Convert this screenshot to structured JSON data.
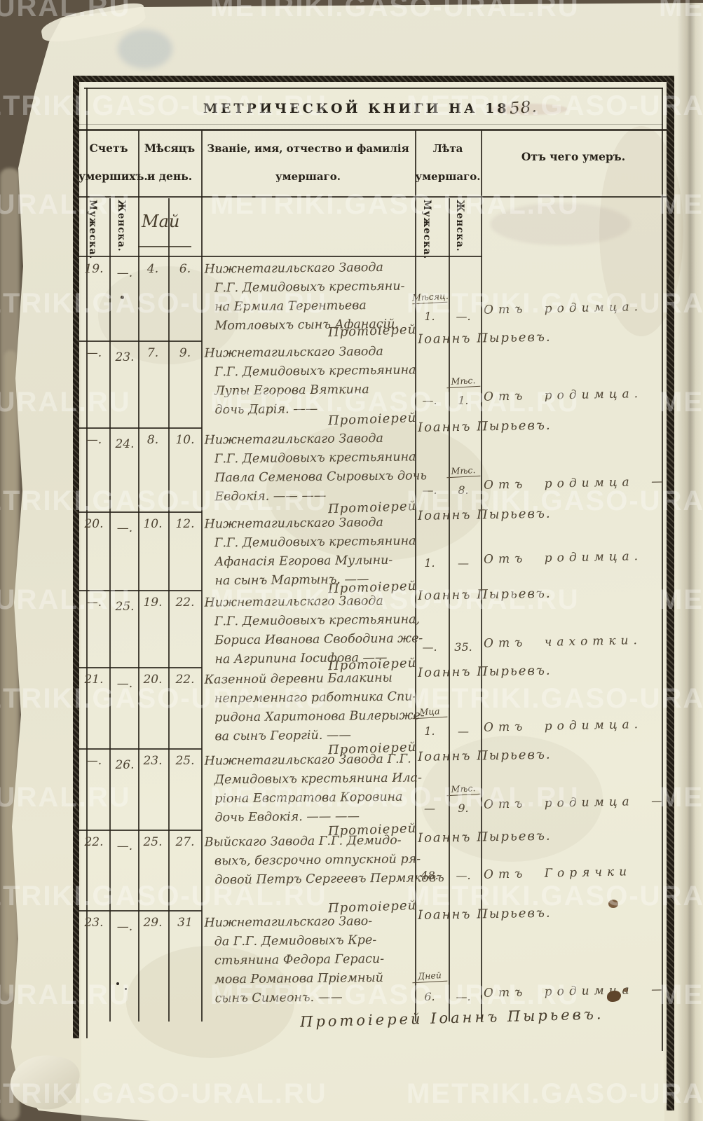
{
  "colors": {
    "background": "#5e5344",
    "paper": "#e8e5d2",
    "print_ink": "#27221a",
    "handwriting_ink": "#4e4433",
    "watermark_white": "rgba(255,255,255,0.32)"
  },
  "watermark": {
    "text": "METRIKI.GASO-URAL.RU"
  },
  "title": {
    "printed": "МЕТРИЧЕСКОЙ КНИГИ НА 18",
    "handwritten": "58."
  },
  "headers": {
    "count1": "Счетъ",
    "count2": "умершихъ.",
    "date1": "Мѣсяцъ",
    "date2": "и день.",
    "name1": "Званіе, имя, отчество и фамилія",
    "name2": "умершаго.",
    "age1": "Лѣта",
    "age2": "умершаго.",
    "cause": "Отъ чего умеръ.",
    "sub_male": "Мужеска.",
    "sub_female": "Женска."
  },
  "month_label": "Май",
  "entries": [
    {
      "no_male": "19.",
      "no_female": "—.",
      "day_death": "4.",
      "day_burial": "6.",
      "description_lines": [
        "Нижнетагильскаго Завода",
        "Г.Г. Демидовыхъ крестьяни-",
        "на Ермила Терентьева",
        "Мотловыхъ сынъ Афанасій."
      ],
      "age_male_label": "Мѣсяц.",
      "age_male": "1.",
      "age_female_label": "",
      "age_female": "—.",
      "cause": "Отъ родимца.",
      "priest_prefix": "Протоіерей",
      "priest_name": "Іоаннъ Пырьевъ."
    },
    {
      "no_male": "—.",
      "no_female": "23.",
      "day_death": "7.",
      "day_burial": "9.",
      "description_lines": [
        "Нижнетагильскаго Завода",
        "Г.Г. Демидовыхъ крестьянина",
        "Лупы Егорова Вяткина",
        "дочь Дарія.  ——"
      ],
      "age_male_label": "",
      "age_male": "—.",
      "age_female_label": "Мѣс.",
      "age_female": "1.",
      "cause": "Отъ родимца.",
      "priest_prefix": "Протоіерей",
      "priest_name": "Іоаннъ Пырьевъ."
    },
    {
      "no_male": "—.",
      "no_female": "24.",
      "day_death": "8.",
      "day_burial": "10.",
      "description_lines": [
        "Нижнетагильскаго Завода",
        "Г.Г. Демидовыхъ крестьянина",
        "Павла Семенова Сыровыхъ дочь",
        "Евдокія.  ——  ——"
      ],
      "age_male_label": "",
      "age_male": "—.",
      "age_female_label": "Мѣс.",
      "age_female": "8.",
      "cause": "Отъ родимца —",
      "priest_prefix": "Протоіерей",
      "priest_name": "Іоаннъ Пырьевъ."
    },
    {
      "no_male": "20.",
      "no_female": "—.",
      "day_death": "10.",
      "day_burial": "12.",
      "description_lines": [
        "Нижнетагильскаго Завода",
        "Г.Г. Демидовыхъ крестьянина",
        "Афанасія Егорова Мулыни-",
        "на сынъ Мартынъ.  ——"
      ],
      "age_male_label": "",
      "age_male": "1.",
      "age_female_label": "",
      "age_female": "—",
      "cause": "Отъ родимца.",
      "priest_prefix": "Протоіерей",
      "priest_name": "Іоаннъ Пырьевъ."
    },
    {
      "no_male": "—.",
      "no_female": "25.",
      "day_death": "19.",
      "day_burial": "22.",
      "description_lines": [
        "Нижнетагильскаго Завода",
        "Г.Г. Демидовыхъ крестьянина,",
        "Бориса Иванова Свободина же-",
        "на Агрипина Іосифова  ——"
      ],
      "age_male_label": "",
      "age_male": "—.",
      "age_female_label": "",
      "age_female": "35.",
      "cause": "Отъ чахотки.",
      "priest_prefix": "Протоіерей",
      "priest_name": "Іоаннъ Пырьевъ."
    },
    {
      "no_male": "21.",
      "no_female": "—.",
      "day_death": "20.",
      "day_burial": "22.",
      "description_lines": [
        "Казенной деревни Балакины",
        "непременнаго работника Спи-",
        "ридона Харитонова Вилерыже-",
        "ва сынъ Георгій.  ——"
      ],
      "age_male_label": "Мца",
      "age_male": "1.",
      "age_female_label": "",
      "age_female": "—",
      "cause": "Отъ родимца.",
      "priest_prefix": "Протоіерей",
      "priest_name": "Іоаннъ Пырьевъ."
    },
    {
      "no_male": "—.",
      "no_female": "26.",
      "day_death": "23.",
      "day_burial": "25.",
      "description_lines": [
        "Нижнетагильскаго Завода Г.Г.",
        "Демидовыхъ крестьянина Ила-",
        "ріона Евстратова Коровина",
        "дочь Евдокія.  ——  ——"
      ],
      "age_male_label": "",
      "age_male": "—",
      "age_female_label": "Мѣс.",
      "age_female": "9.",
      "cause": "Отъ родимца —",
      "priest_prefix": "Протоіерей",
      "priest_name": "Іоаннъ Пырьевъ."
    },
    {
      "no_male": "22.",
      "no_female": "—.",
      "day_death": "25.",
      "day_burial": "27.",
      "description_lines": [
        "Выйскаго Завода Г.Г. Демидо-",
        "выхъ, безсрочно отпускной ря-",
        "довой Петръ Сергеевъ Пермяковъ"
      ],
      "age_male_label": "",
      "age_male": "48.",
      "age_female_label": "",
      "age_female": "—.",
      "cause": "Отъ Горячки",
      "priest_prefix": "Протоіерей",
      "priest_name": "Іоаннъ Пырьевъ."
    },
    {
      "no_male": "23.",
      "no_female": "—.",
      "day_death": "29.",
      "day_burial": "31",
      "description_lines": [
        "Нижнетагильскаго Заво-",
        "да Г.Г. Демидовыхъ Кре-",
        "стьянина Федора Гераси-",
        "мова Романова Пріемный",
        "сынъ Симеонъ.  ——"
      ],
      "age_male_label": "Дней",
      "age_male": "6.",
      "age_female_label": "",
      "age_female": "—.",
      "cause": "Отъ родимца —",
      "priest_prefix": "Протоіерей",
      "priest_name": "Іоаннъ Пырьевъ."
    }
  ]
}
